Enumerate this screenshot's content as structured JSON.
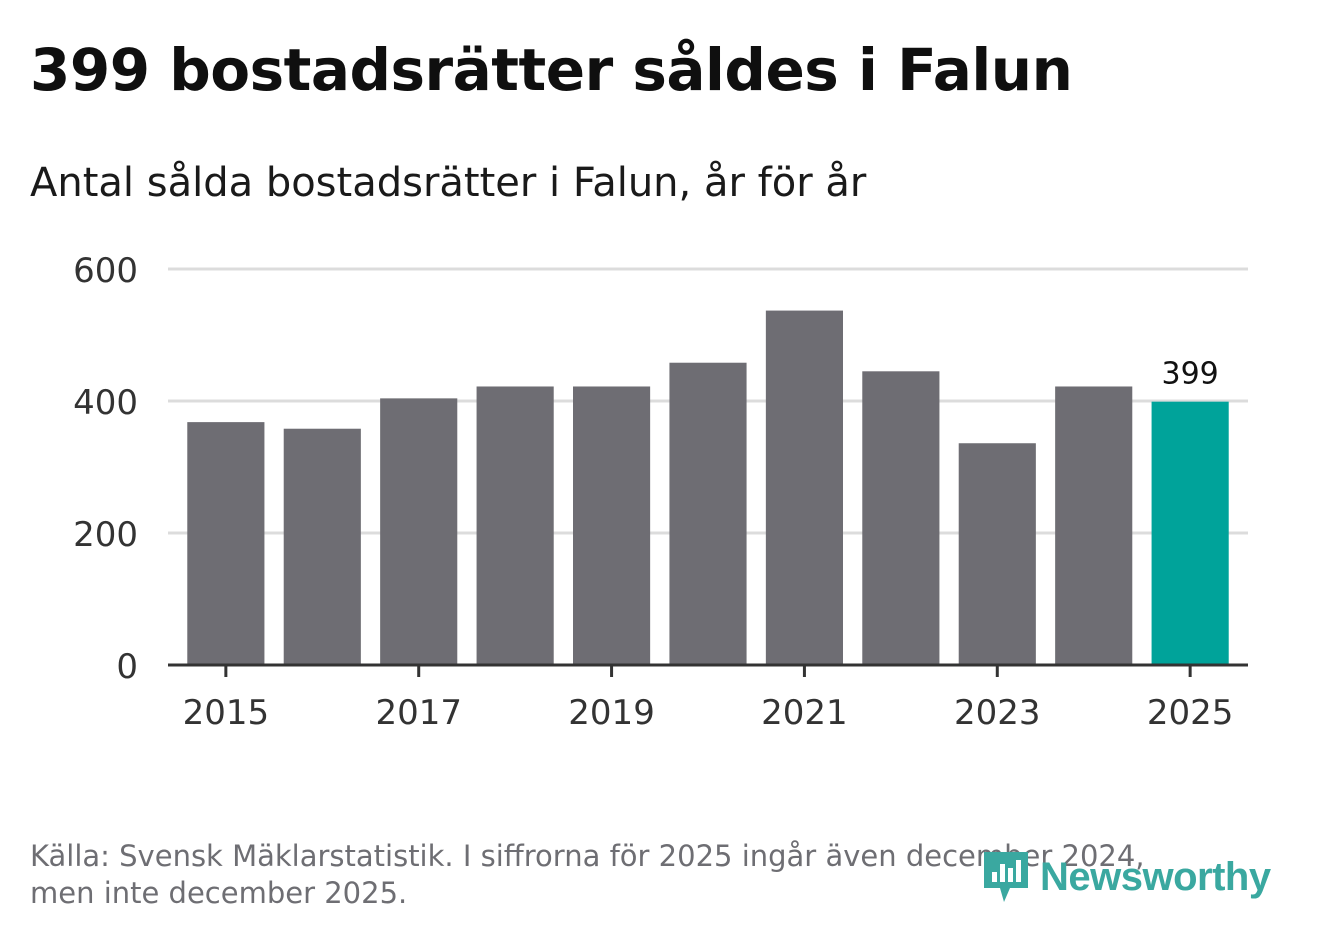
{
  "header": {
    "title": "399 bostadsrätter såldes i Falun",
    "subtitle": "Antal sålda bostadsrätter i Falun, år för år"
  },
  "footer": {
    "source_line1": "Källa: Svensk Mäklarstatistik. I siffrorna för 2025 ingår även december 2024,",
    "source_line2": "men inte december 2025."
  },
  "logo": {
    "name": "Newsworthy",
    "icon": "newsworthy-logo-icon"
  },
  "colors": {
    "bar": "#6e6d73",
    "highlight": "#00a39a",
    "grid": "#dcdcdc",
    "axis": "#333333",
    "brand": "#3aa8a0"
  },
  "chart_data": {
    "type": "bar",
    "title": "Antal sålda bostadsrätter i Falun, år för år",
    "xlabel": "",
    "ylabel": "",
    "categories": [
      "2015",
      "2016",
      "2017",
      "2018",
      "2019",
      "2020",
      "2021",
      "2022",
      "2023",
      "2024",
      "2025"
    ],
    "values": [
      368,
      358,
      404,
      422,
      422,
      458,
      537,
      445,
      336,
      422,
      399
    ],
    "highlight_category": "2025",
    "data_labels": [
      {
        "category": "2025",
        "text": "399"
      }
    ],
    "ylim": [
      0,
      600
    ],
    "yticks": [
      0,
      200,
      400,
      600
    ],
    "xticks": [
      "2015",
      "2017",
      "2019",
      "2021",
      "2023",
      "2025"
    ],
    "grid": true,
    "legend": "none"
  }
}
